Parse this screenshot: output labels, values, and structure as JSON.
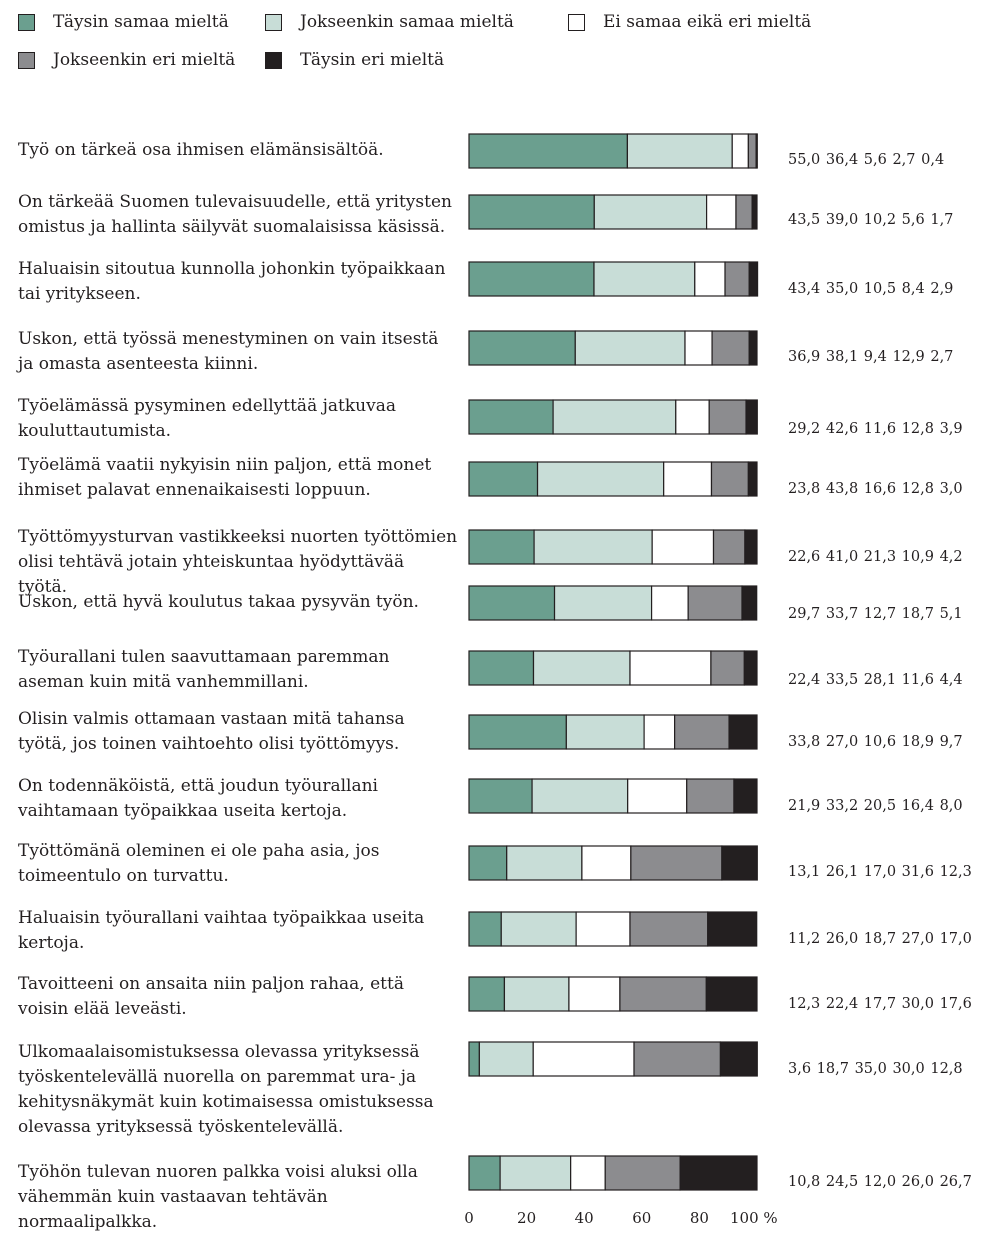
{
  "chart_data": {
    "type": "bar",
    "orientation": "horizontal",
    "stacked": true,
    "xlim": [
      0,
      100
    ],
    "x_ticks": [
      "0",
      "20",
      "40",
      "60",
      "80",
      "100 %"
    ],
    "legend_placement": "top",
    "series": [
      {
        "name": "Täysin samaa mieltä",
        "color": "#6b9f8f"
      },
      {
        "name": "Jokseenkin samaa mieltä",
        "color": "#c8ddd7"
      },
      {
        "name": "Ei samaa eikä eri mieltä",
        "color": "#ffffff"
      },
      {
        "name": "Jokseenkin eri mieltä",
        "color": "#8c8c8f"
      },
      {
        "name": "Täysin eri mieltä",
        "color": "#231f20"
      }
    ],
    "categories": [
      {
        "label": "Työ on tärkeä osa ihmisen elämänsisältöä.",
        "values": [
          55.0,
          36.4,
          5.6,
          2.7,
          0.4
        ],
        "values_text": "55,0 36,4 5,6 2,7 0,4"
      },
      {
        "label": "On tärkeää Suomen tulevaisuudelle, että yritysten omistus ja hallinta säilyvät suomalaisissa käsissä.",
        "values": [
          43.5,
          39.0,
          10.2,
          5.6,
          1.7
        ],
        "values_text": "43,5 39,0 10,2 5,6 1,7"
      },
      {
        "label": "Haluaisin sitoutua kunnolla johonkin työpaikkaan tai yritykseen.",
        "values": [
          43.4,
          35.0,
          10.5,
          8.4,
          2.9
        ],
        "values_text": "43,4 35,0 10,5 8,4 2,9"
      },
      {
        "label": "Uskon, että työssä menestyminen on vain itsestä ja omasta asenteesta kiinni.",
        "values": [
          36.9,
          38.1,
          9.4,
          12.9,
          2.7
        ],
        "values_text": "36,9 38,1 9,4 12,9 2,7"
      },
      {
        "label": "Työelämässä pysyminen edellyttää jatkuvaa kouluttautumista.",
        "values": [
          29.2,
          42.6,
          11.6,
          12.8,
          3.9
        ],
        "values_text": "29,2 42,6 11,6 12,8 3,9"
      },
      {
        "label": "Työelämä vaatii nykyisin niin paljon, että monet ihmiset palavat ennenaikaisesti loppuun.",
        "values": [
          23.8,
          43.8,
          16.6,
          12.8,
          3.0
        ],
        "values_text": "23,8 43,8 16,6 12,8 3,0"
      },
      {
        "label": "Työttömyysturvan vastikkeeksi nuorten työttömien olisi tehtävä jotain yhteiskuntaa hyödyttävää työtä.",
        "values": [
          22.6,
          41.0,
          21.3,
          10.9,
          4.2
        ],
        "values_text": "22,6 41,0 21,3 10,9 4,2"
      },
      {
        "label": "Uskon, että hyvä koulutus takaa pysyvän työn.",
        "values": [
          29.7,
          33.7,
          12.7,
          18.7,
          5.1
        ],
        "values_text": "29,7 33,7 12,7 18,7 5,1"
      },
      {
        "label": "Työurallani tulen saavuttamaan paremman aseman kuin mitä vanhemmillani.",
        "values": [
          22.4,
          33.5,
          28.1,
          11.6,
          4.4
        ],
        "values_text": "22,4 33,5 28,1 11,6 4,4"
      },
      {
        "label": "Olisin valmis ottamaan vastaan mitä tahansa työtä, jos toinen vaihtoehto olisi työttömyys.",
        "values": [
          33.8,
          27.0,
          10.6,
          18.9,
          9.7
        ],
        "values_text": "33,8 27,0 10,6 18,9 9,7"
      },
      {
        "label": "On todennäköistä, että joudun työurallani vaihtamaan työpaikkaa useita kertoja.",
        "values": [
          21.9,
          33.2,
          20.5,
          16.4,
          8.0
        ],
        "values_text": "21,9 33,2 20,5 16,4 8,0"
      },
      {
        "label": "Työttömänä oleminen ei ole paha asia, jos toimeentulo on turvattu.",
        "values": [
          13.1,
          26.1,
          17.0,
          31.6,
          12.3
        ],
        "values_text": "13,1 26,1 17,0 31,6 12,3"
      },
      {
        "label": "Haluaisin työurallani vaihtaa työpaikkaa useita kertoja.",
        "values": [
          11.2,
          26.0,
          18.7,
          27.0,
          17.0
        ],
        "values_text": "11,2 26,0 18,7 27,0 17,0"
      },
      {
        "label": "Tavoitteeni on ansaita niin paljon rahaa, että voisin elää leveästi.",
        "values": [
          12.3,
          22.4,
          17.7,
          30.0,
          17.6
        ],
        "values_text": "12,3 22,4 17,7 30,0 17,6"
      },
      {
        "label": "Ulkomaalaisomistuksessa olevassa yrityksessä työskentelevällä nuorella on paremmat ura- ja kehitysnäkymät kuin kotimaisessa omistuksessa olevassa yrityksessä työskentelevällä.",
        "values": [
          3.6,
          18.7,
          35.0,
          30.0,
          12.8
        ],
        "values_text": "3,6 18,7 35,0 30,0 12,8"
      },
      {
        "label": "Työhön tulevan nuoren palkka voisi aluksi olla vähemmän kuin vastaavan tehtävän normaalipalkka.",
        "values": [
          10.8,
          24.5,
          12.0,
          26.0,
          26.7
        ],
        "values_text": "10,8 24,5 12,0 26,0 26,7"
      }
    ]
  }
}
